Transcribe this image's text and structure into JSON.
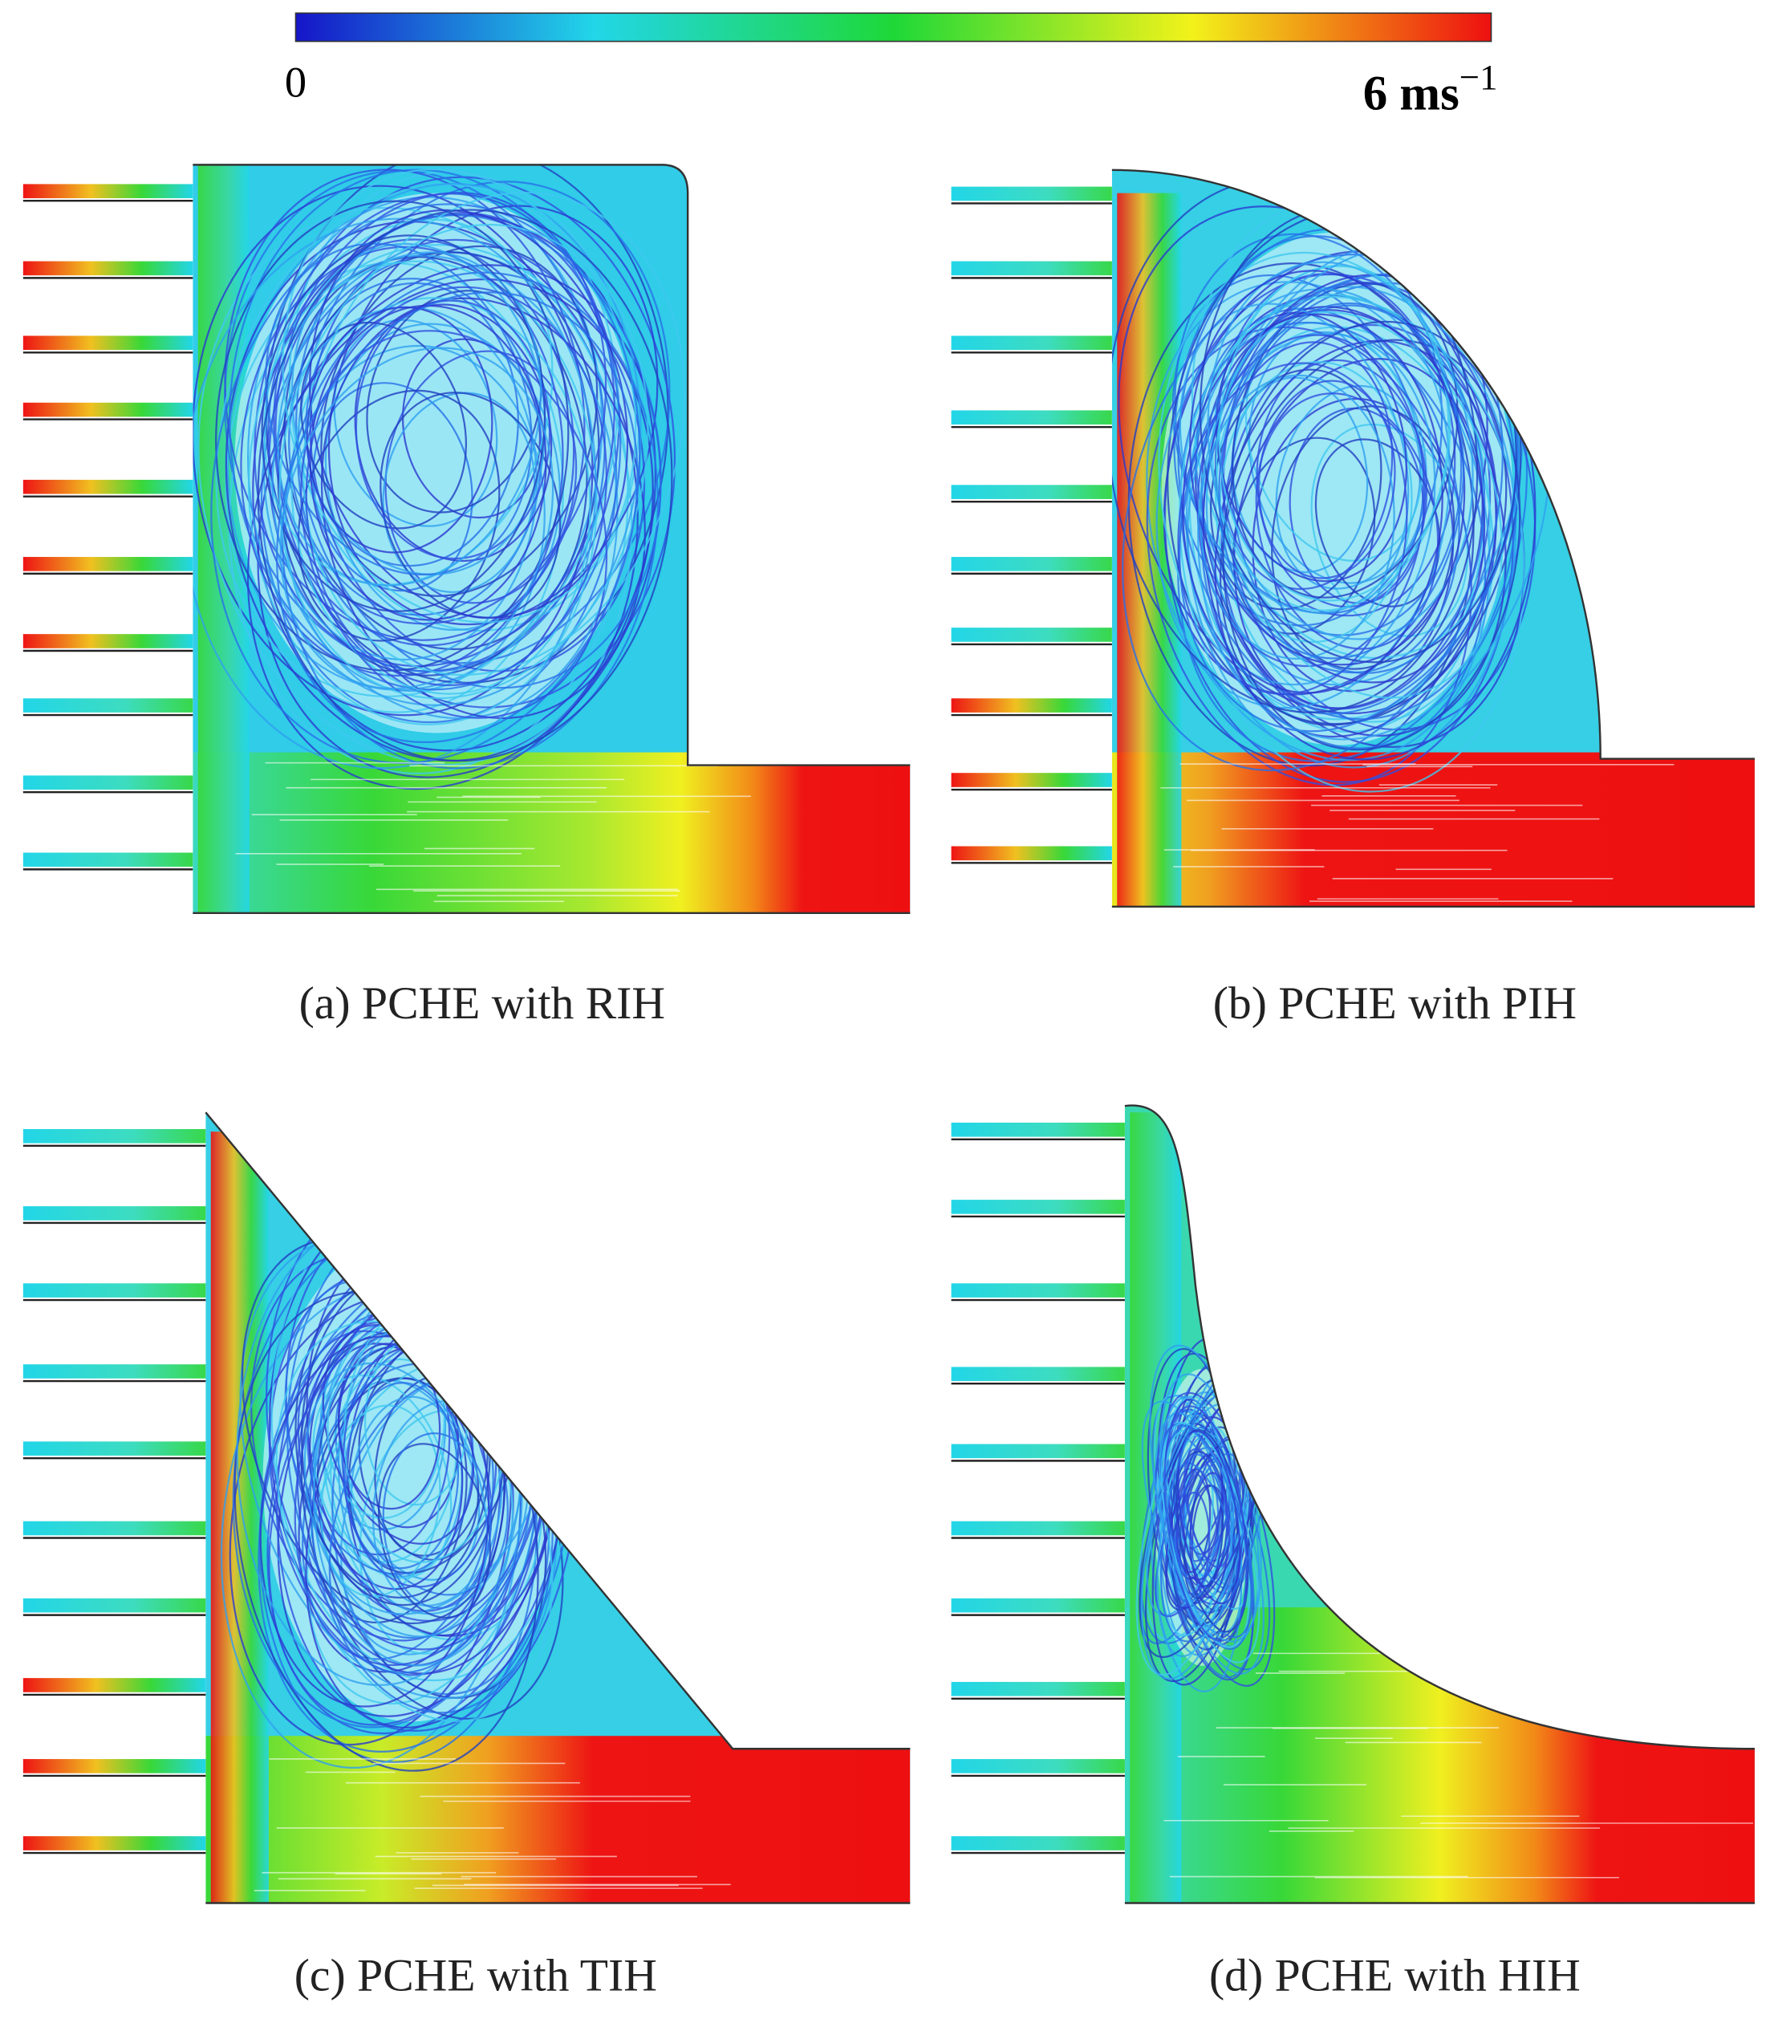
{
  "colorbar": {
    "min_label": "0",
    "max_label": {
      "base": "6 ms",
      "exponent": "−1"
    }
  },
  "panels": [
    {
      "caption": "(a) PCHE with RIH"
    },
    {
      "caption": "(b) PCHE with PIH"
    },
    {
      "caption": "(c) PCHE with TIH"
    },
    {
      "caption": "(d) PCHE with HIH"
    }
  ]
}
